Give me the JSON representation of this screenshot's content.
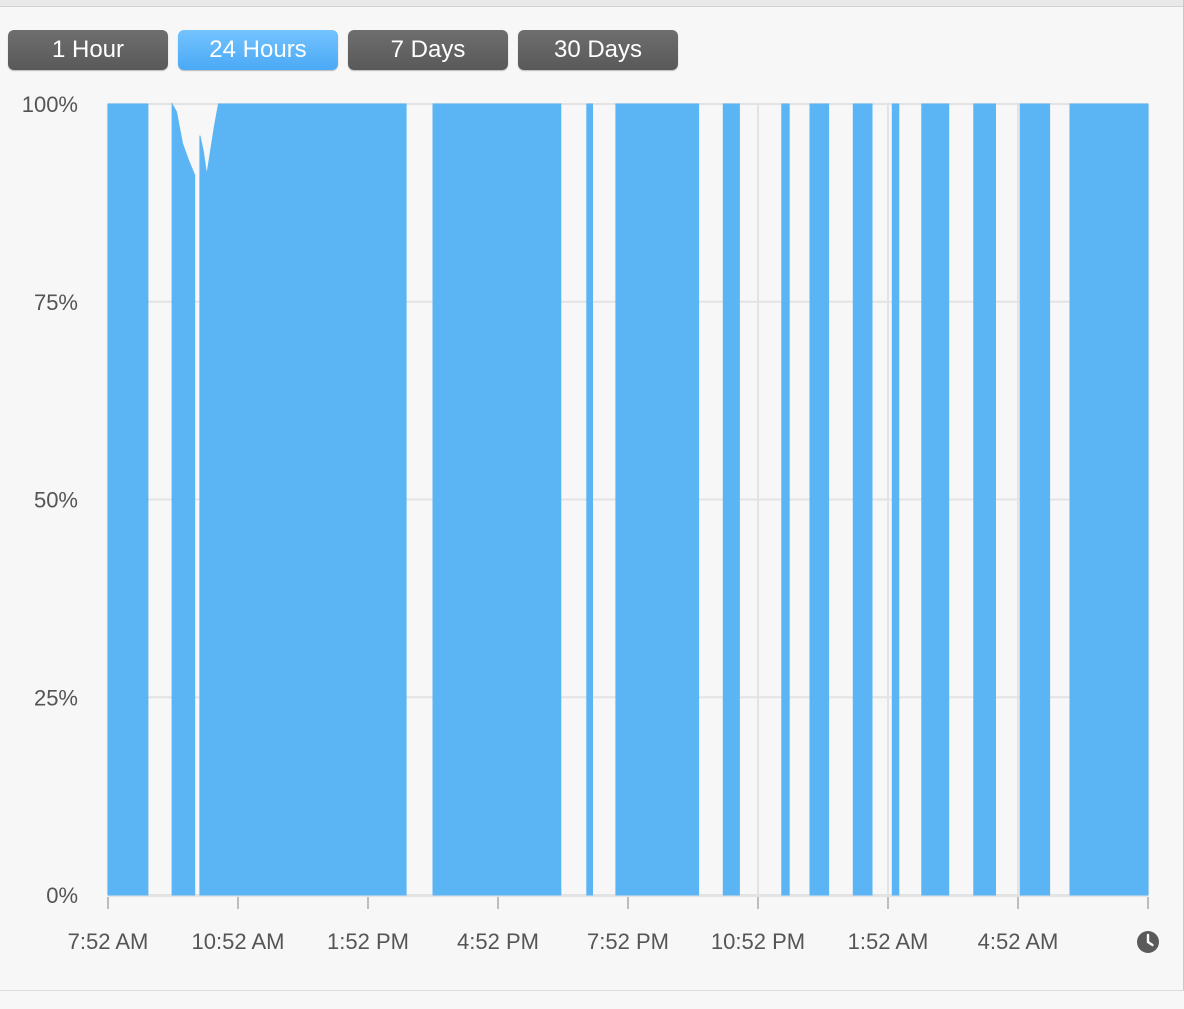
{
  "time_range_tabs": [
    {
      "label": "1 Hour",
      "selected": false
    },
    {
      "label": "24 Hours",
      "selected": true
    },
    {
      "label": "7 Days",
      "selected": false
    },
    {
      "label": "30 Days",
      "selected": false
    }
  ],
  "colors": {
    "fill": "#5bb5f5",
    "grid": "#e3e3e3",
    "axis_text": "#555555"
  },
  "clock_icon": "clock-icon",
  "chart_data": {
    "type": "area",
    "title": "",
    "xlabel": "",
    "ylabel": "",
    "x_tick_labels": [
      "7:52 AM",
      "10:52 AM",
      "1:52 PM",
      "4:52 PM",
      "7:52 PM",
      "10:52 PM",
      "1:52 AM",
      "4:52 AM"
    ],
    "y_tick_labels": [
      "100%",
      "75%",
      "50%",
      "25%",
      "0%"
    ],
    "ylim": [
      0,
      100
    ],
    "x_range_hours": [
      0,
      24
    ],
    "grid": true,
    "series": [
      {
        "segments": [
          {
            "start_h": 0.0,
            "end_h": 0.92,
            "values": [
              [
                0.0,
                100
              ],
              [
                0.92,
                100
              ]
            ]
          },
          {
            "start_h": 1.48,
            "end_h": 2.0,
            "values": [
              [
                1.48,
                100
              ],
              [
                1.58,
                99
              ],
              [
                1.72,
                95
              ],
              [
                1.85,
                93
              ],
              [
                2.0,
                91
              ]
            ]
          },
          {
            "start_h": 2.12,
            "end_h": 6.88,
            "values": [
              [
                2.12,
                96
              ],
              [
                2.2,
                94
              ],
              [
                2.28,
                91
              ],
              [
                2.45,
                97
              ],
              [
                2.55,
                100
              ],
              [
                6.88,
                100
              ]
            ]
          },
          {
            "start_h": 7.5,
            "end_h": 10.45,
            "values": [
              [
                7.5,
                100
              ],
              [
                10.45,
                100
              ]
            ]
          },
          {
            "start_h": 11.05,
            "end_h": 11.18,
            "values": [
              [
                11.05,
                100
              ],
              [
                11.18,
                100
              ]
            ]
          },
          {
            "start_h": 11.72,
            "end_h": 13.63,
            "values": [
              [
                11.72,
                100
              ],
              [
                13.63,
                100
              ]
            ]
          },
          {
            "start_h": 14.2,
            "end_h": 14.57,
            "values": [
              [
                14.2,
                100
              ],
              [
                14.57,
                100
              ]
            ]
          },
          {
            "start_h": 15.55,
            "end_h": 15.72,
            "values": [
              [
                15.55,
                100
              ],
              [
                15.72,
                100
              ]
            ]
          },
          {
            "start_h": 16.2,
            "end_h": 16.63,
            "values": [
              [
                16.2,
                100
              ],
              [
                16.63,
                100
              ]
            ]
          },
          {
            "start_h": 17.2,
            "end_h": 17.63,
            "values": [
              [
                17.2,
                100
              ],
              [
                17.63,
                100
              ]
            ]
          },
          {
            "start_h": 18.1,
            "end_h": 18.25,
            "values": [
              [
                18.1,
                100
              ],
              [
                18.25,
                100
              ]
            ]
          },
          {
            "start_h": 18.78,
            "end_h": 19.4,
            "values": [
              [
                18.78,
                100
              ],
              [
                19.4,
                100
              ]
            ]
          },
          {
            "start_h": 19.98,
            "end_h": 20.48,
            "values": [
              [
                19.98,
                100
              ],
              [
                20.48,
                100
              ]
            ]
          },
          {
            "start_h": 21.05,
            "end_h": 21.73,
            "values": [
              [
                21.05,
                100
              ],
              [
                21.73,
                100
              ]
            ]
          },
          {
            "start_h": 22.2,
            "end_h": 24.0,
            "values": [
              [
                22.2,
                100
              ],
              [
                24.0,
                100
              ]
            ]
          }
        ]
      }
    ]
  }
}
